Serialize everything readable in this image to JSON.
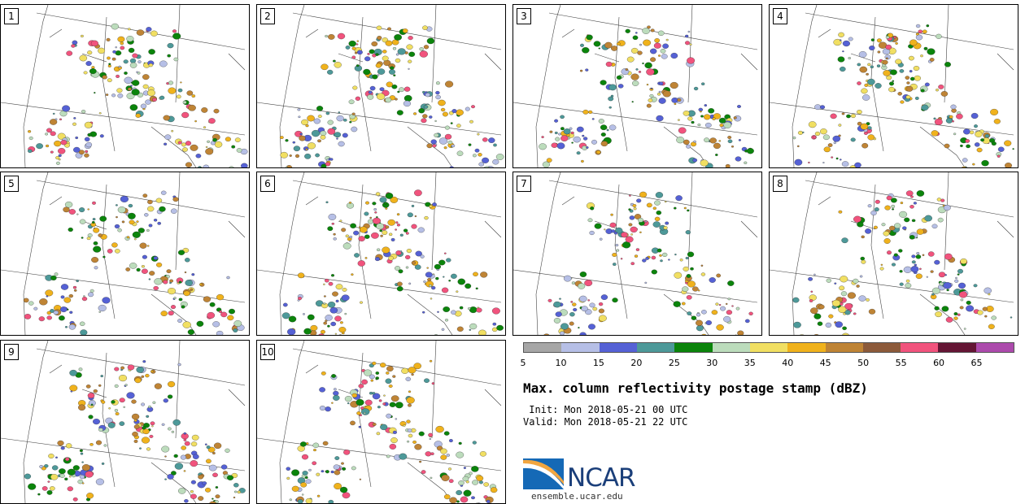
{
  "panels": [
    {
      "label": "1",
      "seed": 11
    },
    {
      "label": "2",
      "seed": 23
    },
    {
      "label": "3",
      "seed": 37
    },
    {
      "label": "4",
      "seed": 41
    },
    {
      "label": "5",
      "seed": 53
    },
    {
      "label": "6",
      "seed": 67
    },
    {
      "label": "7",
      "seed": 71
    },
    {
      "label": "8",
      "seed": 89
    },
    {
      "label": "9",
      "seed": 97
    },
    {
      "label": "10",
      "seed": 103
    }
  ],
  "colorbar": {
    "colors": [
      "#a6a6a6",
      "#b6bfe6",
      "#5561d5",
      "#4d9999",
      "#0b840b",
      "#bcdcbc",
      "#f1df62",
      "#f0b21c",
      "#bf8435",
      "#8c5a3a",
      "#f1537d",
      "#641534",
      "#ac4aac"
    ],
    "ticks": [
      "5",
      "10",
      "15",
      "20",
      "25",
      "30",
      "35",
      "40",
      "45",
      "50",
      "55",
      "60",
      "65"
    ]
  },
  "title": "Max. column reflectivity postage stamp (dBZ)",
  "init": " Init: Mon 2018-05-21 00 UTC",
  "valid": "Valid: Mon 2018-05-21 22 UTC",
  "logo": {
    "text": "NCAR",
    "url": "ensemble.ucar.edu"
  }
}
